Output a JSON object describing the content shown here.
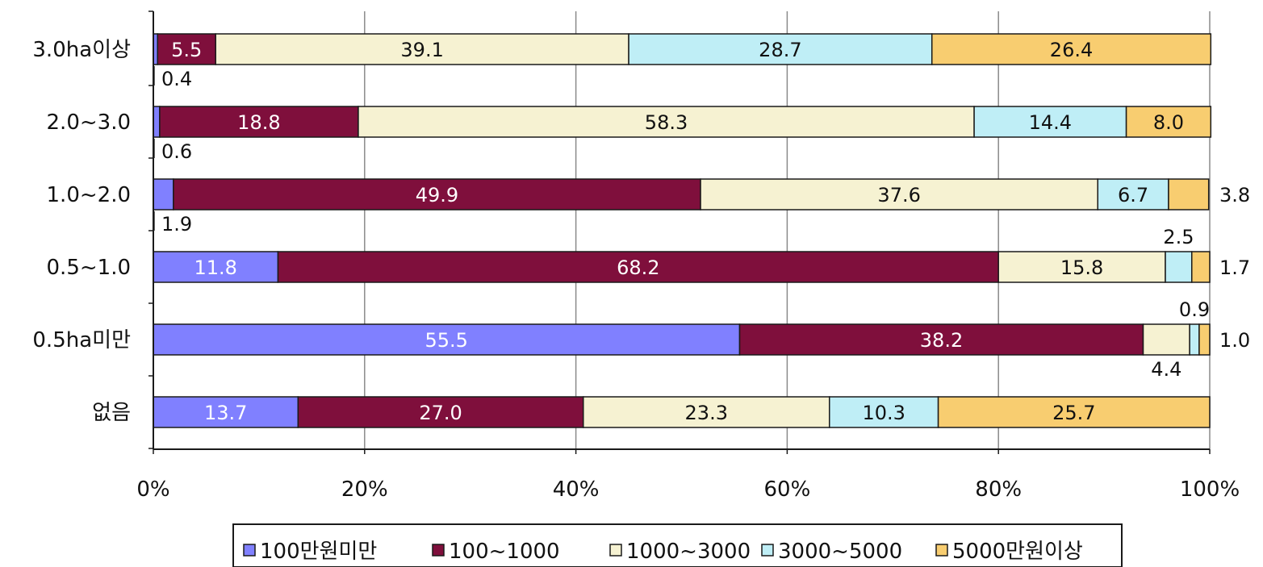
{
  "chart_data": {
    "type": "bar",
    "orientation": "horizontal",
    "stacked": "percent",
    "categories": [
      "3.0ha이상",
      "2.0~3.0",
      "1.0~2.0",
      "0.5~1.0",
      "0.5ha미만",
      "없음"
    ],
    "series": [
      {
        "name": "100만원미만",
        "color": "#8080ff",
        "label_color": "#ffffff",
        "values": [
          0.4,
          0.6,
          1.9,
          11.8,
          55.5,
          13.7
        ]
      },
      {
        "name": "100~1000",
        "color": "#7f0f3c",
        "label_color": "#ffffff",
        "values": [
          5.5,
          18.8,
          49.9,
          68.2,
          38.2,
          27.0
        ]
      },
      {
        "name": "1000~3000",
        "color": "#f6f2d2",
        "label_color": "#111111",
        "values": [
          39.1,
          58.3,
          37.6,
          15.8,
          4.4,
          23.3
        ]
      },
      {
        "name": "3000~5000",
        "color": "#bfeef6",
        "label_color": "#111111",
        "values": [
          28.7,
          14.4,
          6.7,
          2.5,
          0.9,
          10.3
        ]
      },
      {
        "name": "5000만원이상",
        "color": "#f8cd70",
        "label_color": "#111111",
        "values": [
          26.4,
          8.0,
          3.8,
          1.7,
          1.0,
          25.7
        ]
      }
    ],
    "x_ticks": [
      "0%",
      "20%",
      "40%",
      "60%",
      "80%",
      "100%"
    ],
    "xlim": [
      0,
      100
    ],
    "grid": true,
    "legend_position": "bottom",
    "labels": [
      {
        "row": 0,
        "series": 0,
        "text": "0.4",
        "placement": "below"
      },
      {
        "row": 0,
        "series": 1,
        "text": "5.5",
        "placement": "inside"
      },
      {
        "row": 0,
        "series": 2,
        "text": "39.1",
        "placement": "inside"
      },
      {
        "row": 0,
        "series": 3,
        "text": "28.7",
        "placement": "inside"
      },
      {
        "row": 0,
        "series": 4,
        "text": "26.4",
        "placement": "inside"
      },
      {
        "row": 1,
        "series": 0,
        "text": "0.6",
        "placement": "below"
      },
      {
        "row": 1,
        "series": 1,
        "text": "18.8",
        "placement": "inside"
      },
      {
        "row": 1,
        "series": 2,
        "text": "58.3",
        "placement": "inside"
      },
      {
        "row": 1,
        "series": 3,
        "text": "14.4",
        "placement": "inside"
      },
      {
        "row": 1,
        "series": 4,
        "text": "8.0",
        "placement": "inside"
      },
      {
        "row": 2,
        "series": 0,
        "text": "1.9",
        "placement": "below"
      },
      {
        "row": 2,
        "series": 1,
        "text": "49.9",
        "placement": "inside"
      },
      {
        "row": 2,
        "series": 2,
        "text": "37.6",
        "placement": "inside"
      },
      {
        "row": 2,
        "series": 3,
        "text": "6.7",
        "placement": "inside"
      },
      {
        "row": 2,
        "series": 4,
        "text": "3.8",
        "placement": "right"
      },
      {
        "row": 3,
        "series": 0,
        "text": "11.8",
        "placement": "inside"
      },
      {
        "row": 3,
        "series": 1,
        "text": "68.2",
        "placement": "inside"
      },
      {
        "row": 3,
        "series": 2,
        "text": "15.8",
        "placement": "inside"
      },
      {
        "row": 3,
        "series": 3,
        "text": "2.5",
        "placement": "above"
      },
      {
        "row": 3,
        "series": 4,
        "text": "1.7",
        "placement": "right"
      },
      {
        "row": 4,
        "series": 0,
        "text": "55.5",
        "placement": "inside"
      },
      {
        "row": 4,
        "series": 1,
        "text": "38.2",
        "placement": "inside"
      },
      {
        "row": 4,
        "series": 2,
        "text": "4.4",
        "placement": "below"
      },
      {
        "row": 4,
        "series": 3,
        "text": "0.9",
        "placement": "above"
      },
      {
        "row": 4,
        "series": 4,
        "text": "1.0",
        "placement": "right"
      },
      {
        "row": 5,
        "series": 0,
        "text": "13.7",
        "placement": "inside"
      },
      {
        "row": 5,
        "series": 1,
        "text": "27.0",
        "placement": "inside"
      },
      {
        "row": 5,
        "series": 2,
        "text": "23.3",
        "placement": "inside"
      },
      {
        "row": 5,
        "series": 3,
        "text": "10.3",
        "placement": "inside"
      },
      {
        "row": 5,
        "series": 4,
        "text": "25.7",
        "placement": "inside"
      }
    ]
  }
}
